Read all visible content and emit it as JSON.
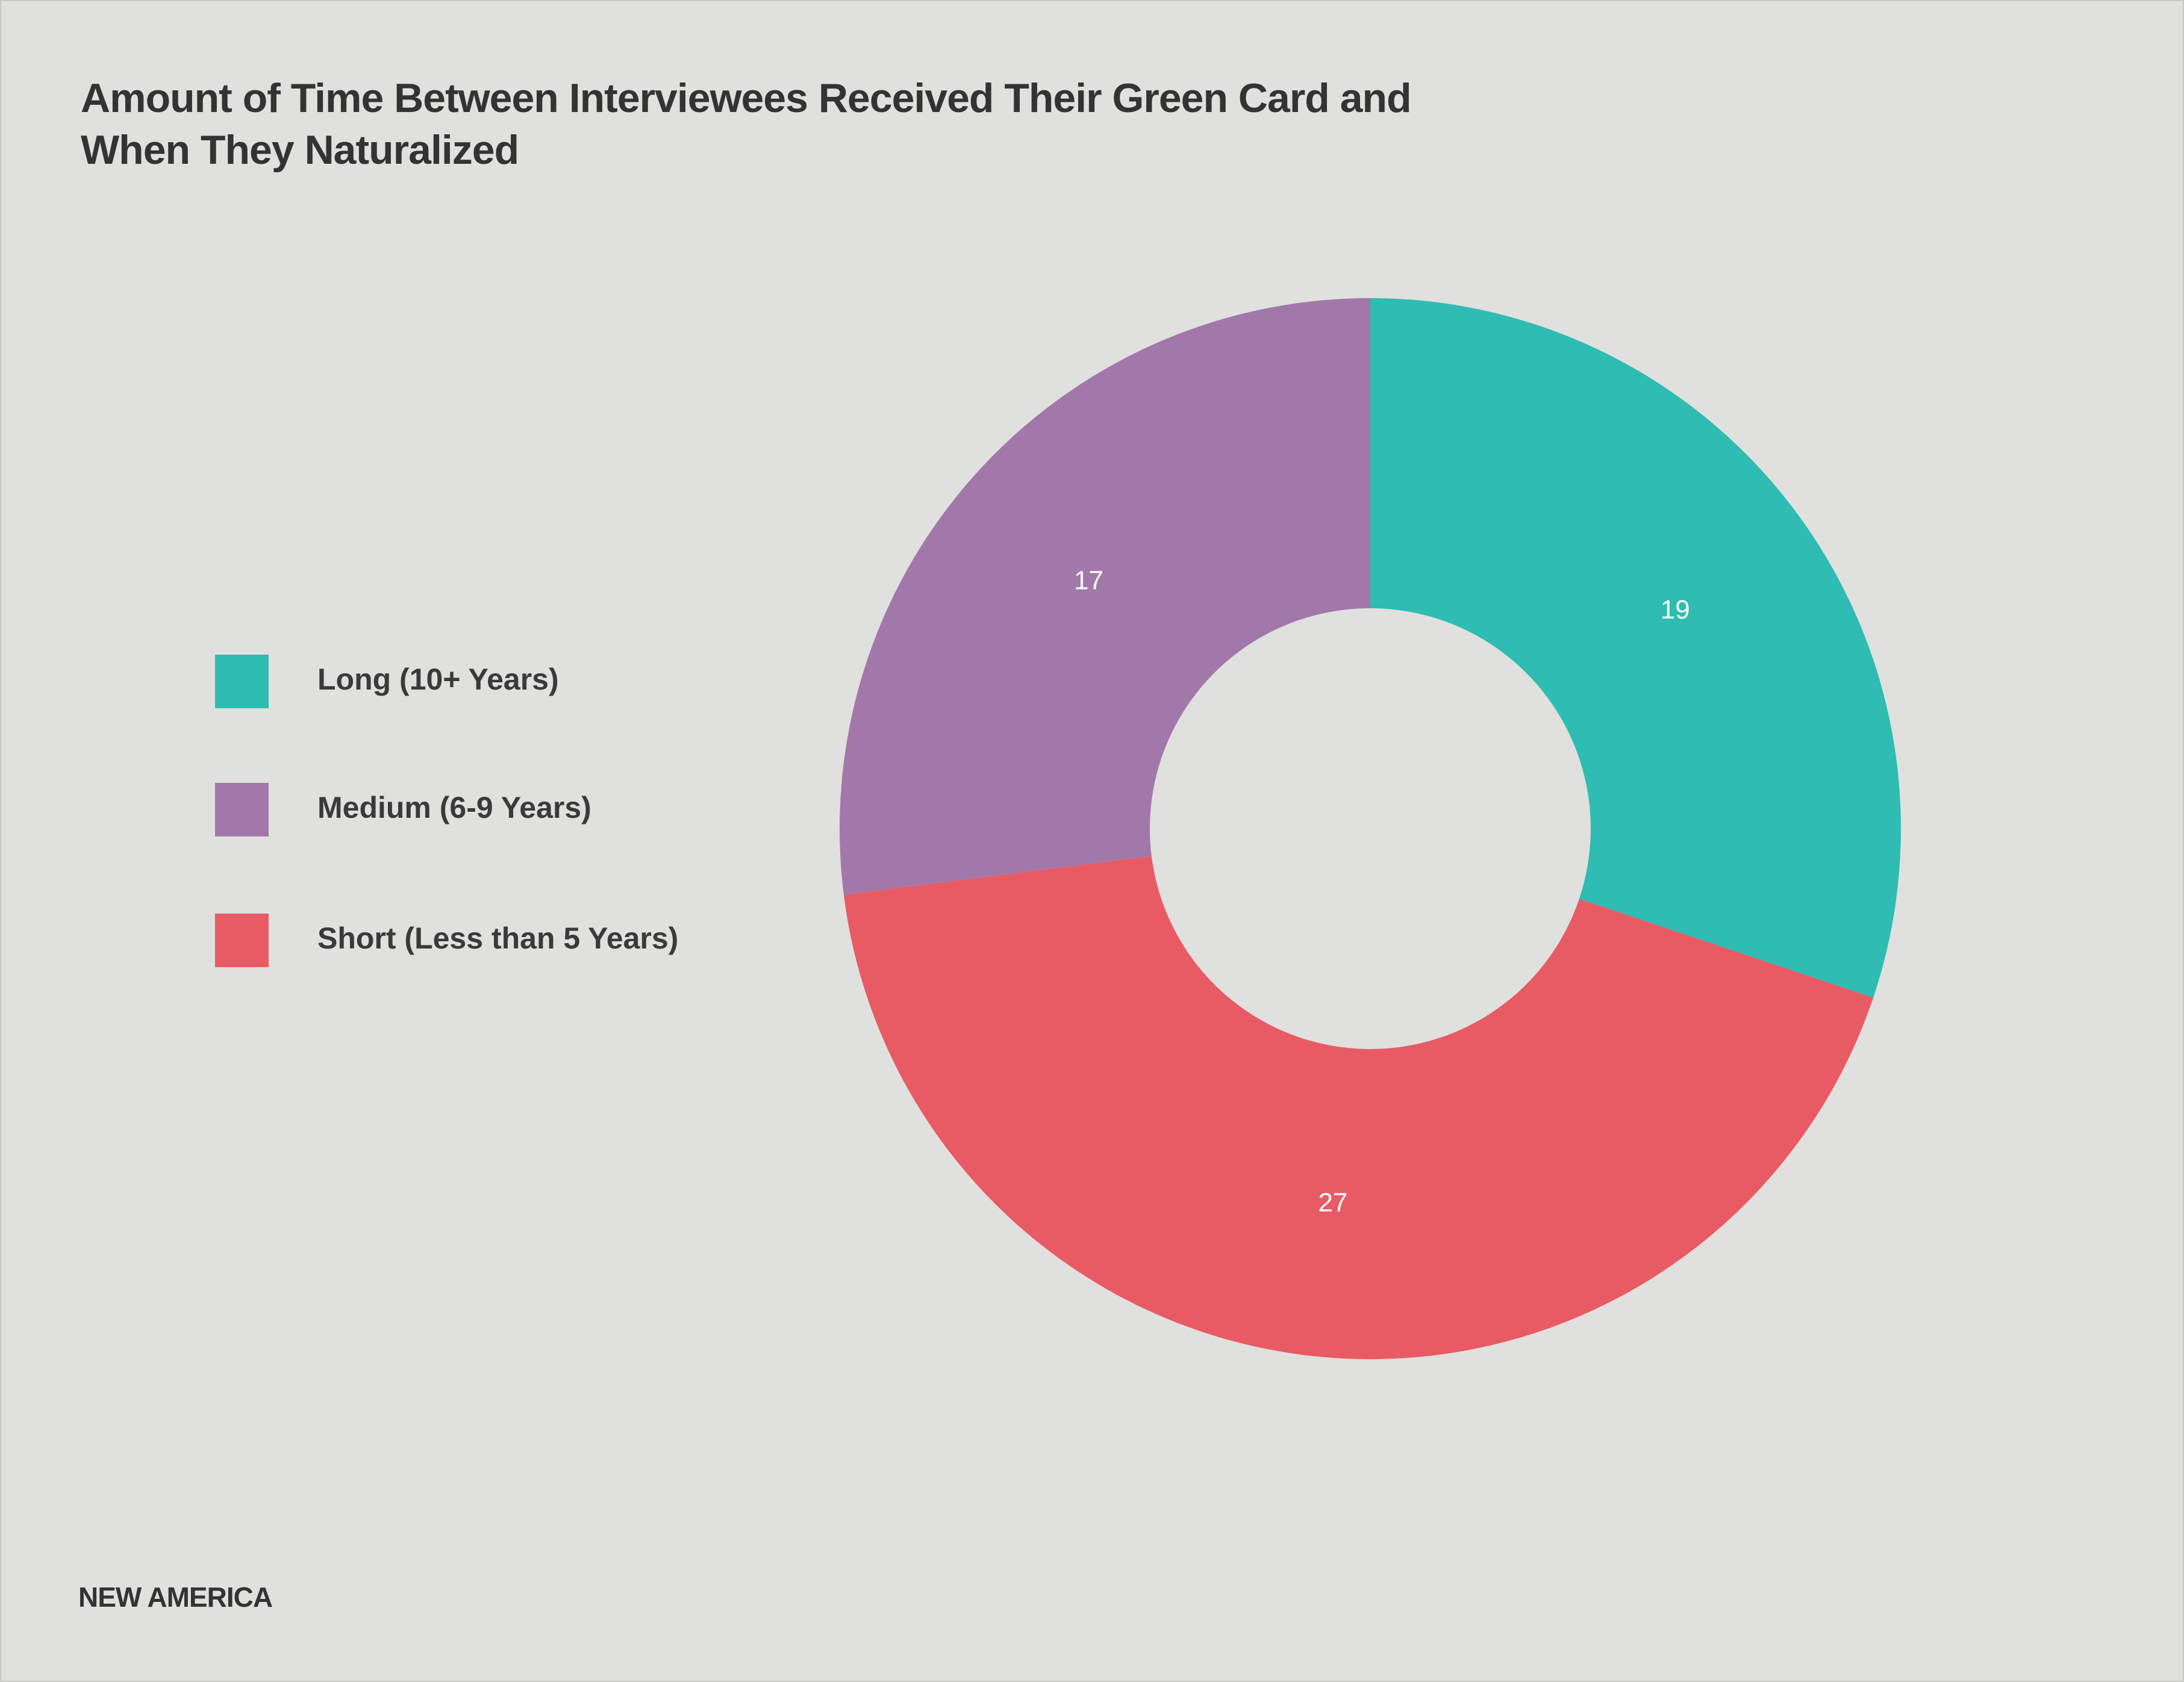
{
  "chart_data": {
    "type": "pie",
    "subtype": "donut",
    "title": "Amount of Time Between Interviewees Received Their Green Card and When They Naturalized",
    "title_lines": [
      "Amount of Time Between Interviewees Received Their Green Card and",
      "When They Naturalized"
    ],
    "categories": [
      "Long (10+ Years)",
      "Short (Less than 5 Years)",
      "Medium (6-9 Years)"
    ],
    "values": [
      19,
      27,
      17
    ],
    "colors": [
      "#2ebcb3",
      "#e85b65",
      "#a278ab"
    ],
    "data_labels": [
      "19",
      "27",
      "17"
    ],
    "legend": {
      "placement": "left",
      "items": [
        {
          "label": "Long (10+ Years)",
          "color": "#2ebcb3"
        },
        {
          "label": "Medium (6-9 Years)",
          "color": "#a278ab"
        },
        {
          "label": "Short (Less than 5 Years)",
          "color": "#e85b65"
        }
      ]
    }
  },
  "footer": {
    "brand": "NEW AMERICA"
  },
  "colors": {
    "background": "#e0e0de",
    "text": "#333333"
  }
}
